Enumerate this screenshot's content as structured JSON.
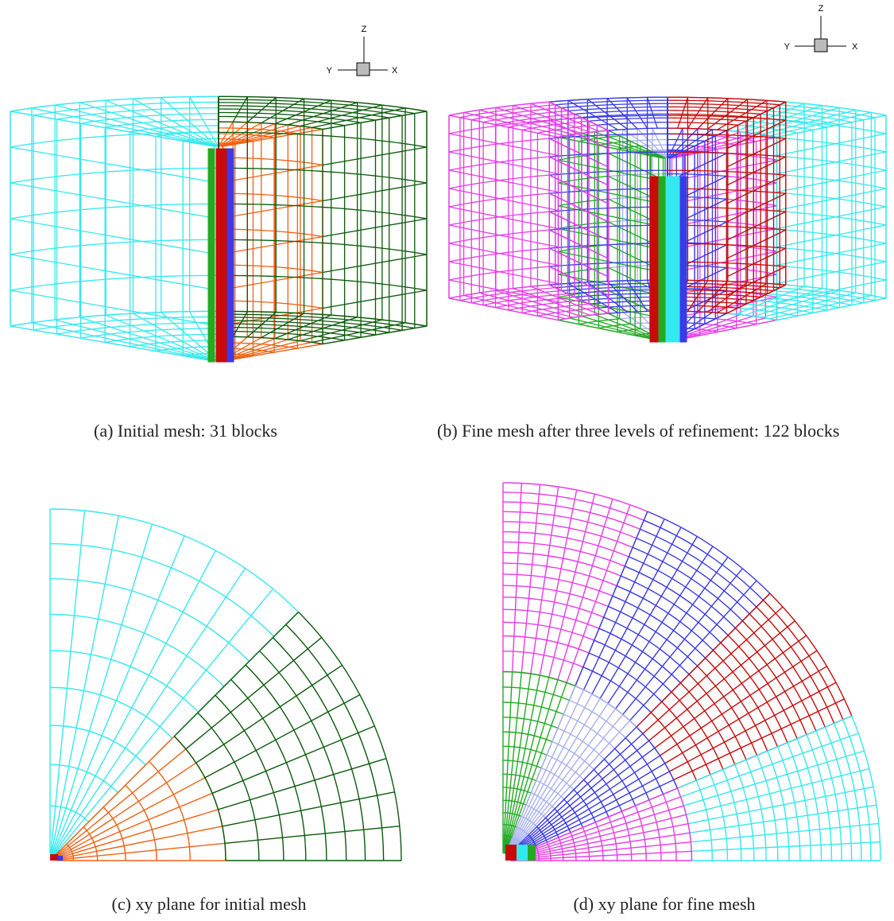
{
  "panels": [
    {
      "caption": "(a) Initial mesh: 31 blocks",
      "triad": {
        "z": "Z",
        "y": "Y",
        "x": "X"
      }
    },
    {
      "caption": "(b) Fine mesh after three levels of refinement: 122 blocks",
      "triad": {
        "z": "Z",
        "y": "Y",
        "x": "X"
      }
    },
    {
      "caption": "(c) xy plane for initial mesh"
    },
    {
      "caption": "(d) xy plane for fine mesh"
    }
  ]
}
